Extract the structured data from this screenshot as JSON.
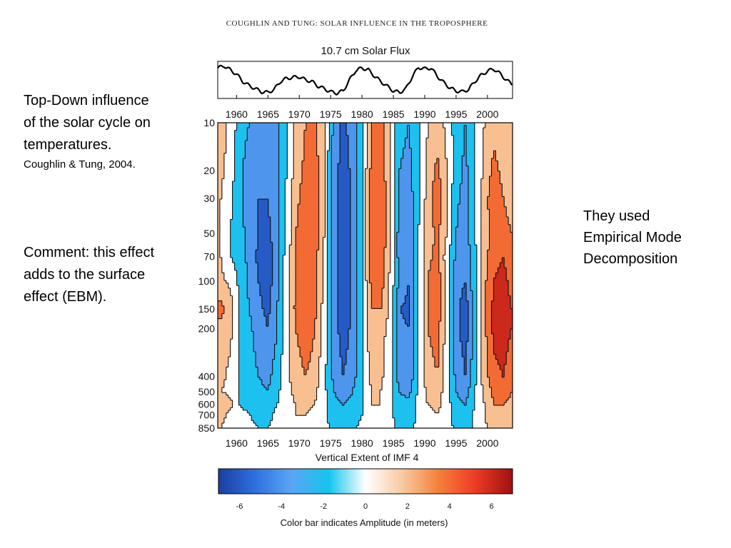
{
  "slide": {
    "left_text": {
      "lines": [
        "Top-Down influence",
        "of the solar cycle on",
        "temperatures."
      ],
      "citation": "Coughlin & Tung, 2004."
    },
    "comment": {
      "lines": [
        "Comment: this effect",
        "adds to the surface",
        "effect (EBM)."
      ]
    },
    "right_text": {
      "lines": [
        "They used",
        "Empirical Mode",
        "Decomposition"
      ]
    }
  },
  "figure": {
    "header": "COUGHLIN AND TUNG: SOLAR INFLUENCE IN THE TROPOSPHERE"
  },
  "chart_data": [
    {
      "type": "line",
      "title": "10.7 cm Solar Flux",
      "xlabel": "",
      "ylabel": "",
      "xlim": [
        1957,
        2004
      ],
      "x_ticks": [
        "1960",
        "1965",
        "1970",
        "1975",
        "1980",
        "1985",
        "1990",
        "1995",
        "2000"
      ],
      "series": [
        {
          "x": [
            1957,
            1958,
            1959,
            1960,
            1961,
            1962,
            1963,
            1964,
            1965,
            1966,
            1967,
            1968,
            1969,
            1970,
            1971,
            1972,
            1973,
            1974,
            1975,
            1976,
            1977,
            1978,
            1979,
            1980,
            1981,
            1982,
            1983,
            1984,
            1985,
            1986,
            1987,
            1988,
            1989,
            1990,
            1991,
            1992,
            1993,
            1994,
            1995,
            1996,
            1997,
            1998,
            1999,
            2000,
            2001,
            2002,
            2003,
            2004
          ],
          "values": [
            0.88,
            0.95,
            0.82,
            0.68,
            0.45,
            0.32,
            0.22,
            0.12,
            0.1,
            0.2,
            0.45,
            0.55,
            0.58,
            0.6,
            0.5,
            0.45,
            0.3,
            0.22,
            0.12,
            0.08,
            0.15,
            0.5,
            0.8,
            0.88,
            0.82,
            0.62,
            0.45,
            0.3,
            0.15,
            0.1,
            0.22,
            0.6,
            0.9,
            0.85,
            0.88,
            0.62,
            0.42,
            0.25,
            0.15,
            0.12,
            0.2,
            0.45,
            0.65,
            0.78,
            0.85,
            0.7,
            0.5,
            0.35
          ]
        }
      ]
    },
    {
      "type": "heatmap",
      "title": "",
      "xlabel": "Vertical Extent of IMF 4",
      "ylabel": "",
      "xlim": [
        1957,
        2004
      ],
      "x_ticks": [
        "1960",
        "1965",
        "1970",
        "1975",
        "1980",
        "1985",
        "1990",
        "1995",
        "2000"
      ],
      "y_ticks": [
        "10",
        "20",
        "30",
        "50",
        "70",
        "100",
        "150",
        "200",
        "400",
        "500",
        "600",
        "700",
        "850"
      ],
      "y_scale": "log",
      "colorbar": {
        "label": "Color bar indicates Amplitude (in meters)",
        "range": [
          -7,
          7
        ],
        "ticks": [
          "-6",
          "-4",
          "-2",
          "0",
          "2",
          "4",
          "6"
        ],
        "colors": [
          "#1b3fa0",
          "#2f6fe0",
          "#5aa6f2",
          "#13c6ee",
          "#ffffff",
          "#f8caa0",
          "#f57f3a",
          "#ee3a25",
          "#9e1010"
        ]
      },
      "x": [
        1957.5,
        1959.0,
        1960.5,
        1962.0,
        1963.5,
        1965.0,
        1966.5,
        1968.0,
        1969.5,
        1971.0,
        1972.5,
        1974.0,
        1975.5,
        1977.0,
        1978.5,
        1980.0,
        1981.5,
        1983.0,
        1984.5,
        1986.0,
        1987.5,
        1989.0,
        1990.5,
        1992.0,
        1993.5,
        1995.0,
        1996.5,
        1998.0,
        1999.5,
        2001.0,
        2002.5,
        2003.8
      ],
      "levels_hPa": [
        10,
        20,
        30,
        50,
        70,
        100,
        150,
        200,
        400,
        500,
        600,
        700,
        850
      ],
      "z": [
        [
          2,
          0.5,
          -2,
          -3,
          -4,
          -4.5,
          -3.5,
          -1.5,
          1.5,
          3,
          3.5,
          1,
          -3.5,
          -5.5,
          -4,
          -1,
          3,
          4,
          1,
          -2.5,
          -3,
          -1.5,
          1,
          2,
          0.5,
          -2,
          -3,
          -1,
          1,
          2.5,
          2,
          1.5
        ],
        [
          1.5,
          0,
          -2.5,
          -4,
          -5,
          -5,
          -3.5,
          -1,
          2,
          3.5,
          4,
          1,
          -4,
          -6,
          -4.5,
          -1,
          3.5,
          4.5,
          1,
          -3,
          -3.5,
          -1.5,
          1.5,
          3.5,
          1,
          -2,
          -3.5,
          -1,
          1.5,
          3.5,
          2.5,
          1.5
        ],
        [
          1,
          -0.5,
          -2.5,
          -4,
          -5,
          -5,
          -3.5,
          -0.5,
          2.5,
          4,
          4,
          1,
          -4,
          -6,
          -4.5,
          -1,
          4,
          5,
          1,
          -3.5,
          -4,
          -1.5,
          2,
          4.5,
          1,
          -2.5,
          -4,
          -1,
          2,
          4.5,
          3,
          2
        ],
        [
          1,
          -1,
          -2.5,
          -3.5,
          -5,
          -5.5,
          -3.5,
          -0.5,
          3,
          4.5,
          4,
          1,
          -4,
          -6,
          -4.5,
          -1,
          4,
          5,
          1,
          -4,
          -4.5,
          -1,
          2,
          3.5,
          1,
          -3,
          -4,
          -1,
          2,
          4,
          4,
          3
        ],
        [
          1,
          -1,
          -2,
          -3.5,
          -5.5,
          -6.5,
          -3.5,
          0,
          3,
          5,
          4,
          0.5,
          -4,
          -6,
          -4.5,
          -1,
          4,
          4.5,
          1,
          -4,
          -4.5,
          -1,
          2.5,
          3.5,
          0,
          -3.5,
          -4.5,
          -1.5,
          2,
          4.5,
          5,
          4
        ],
        [
          1.5,
          0.5,
          -1.5,
          -3.5,
          -5,
          -6,
          -3.5,
          0,
          3.5,
          5,
          4,
          0.5,
          -4,
          -6,
          -4.5,
          -1,
          3.5,
          4,
          0.5,
          -3.5,
          -5,
          -1,
          3,
          4.5,
          0,
          -4,
          -5,
          -1.5,
          2.5,
          5,
          5.5,
          4.5
        ],
        [
          3.5,
          2,
          -1,
          -3,
          -4.5,
          -5.5,
          -3,
          0.5,
          3.5,
          5,
          3.5,
          0,
          -4,
          -6,
          -4.5,
          -1,
          3,
          3,
          0.5,
          -5,
          -5.5,
          -1,
          3,
          4.5,
          0,
          -4.5,
          -6,
          -2,
          2.5,
          5.5,
          6,
          5
        ],
        [
          2.5,
          1.5,
          -1,
          -2.5,
          -4,
          -5,
          -3,
          0.5,
          3,
          4.5,
          3,
          0,
          -4,
          -6,
          -4.5,
          -1,
          2.5,
          2,
          0,
          -4.5,
          -5,
          -1,
          3,
          4,
          0,
          -4.5,
          -6,
          -2,
          2.5,
          5.5,
          6,
          5
        ],
        [
          1.5,
          0.5,
          -1,
          -2,
          -3,
          -3.5,
          -2,
          0.5,
          2,
          3,
          2,
          -0.5,
          -3.5,
          -5,
          -4,
          -1,
          1.5,
          1.5,
          -0.5,
          -4,
          -4.5,
          -1,
          2,
          3,
          0,
          -3.5,
          -5,
          -1.5,
          2,
          4.5,
          5,
          4
        ],
        [
          1,
          0.5,
          -1,
          -2,
          -2.5,
          -3,
          -1.5,
          0.5,
          1.5,
          2,
          1.5,
          -0.5,
          -3,
          -4,
          -3,
          -1,
          1,
          1,
          -0.5,
          -3,
          -3.5,
          -0.5,
          1.5,
          2,
          0,
          -3,
          -4,
          -1,
          1.5,
          3.5,
          4,
          3
        ],
        [
          3,
          1.5,
          -1,
          -1.5,
          -2,
          -2,
          -1,
          0.5,
          1,
          1.5,
          1,
          -0.5,
          -2.5,
          -3,
          -2.5,
          -1,
          1,
          1,
          -0.5,
          -2.5,
          -2.5,
          -0.5,
          1,
          1.5,
          0,
          -2.5,
          -3,
          -1,
          1,
          3,
          3,
          2.5
        ],
        [
          1.5,
          0.5,
          -0.5,
          -1,
          -1.5,
          -1.5,
          -0.5,
          0.5,
          1,
          1,
          0.5,
          -0.5,
          -2,
          -2.5,
          -2,
          -1,
          0.5,
          0.5,
          -0.5,
          -2,
          -2,
          -0.5,
          0.5,
          1,
          0,
          -2,
          -2.5,
          -0.5,
          1,
          2.5,
          2.5,
          2
        ],
        [
          1,
          0.5,
          -0.5,
          -0.5,
          -1,
          -1,
          -0.5,
          0.5,
          0.5,
          0.5,
          0.5,
          -0.5,
          -1.5,
          -1.5,
          -1.5,
          -0.5,
          0.5,
          0.5,
          -0.5,
          -1.5,
          -1.5,
          -0.5,
          0.5,
          0.5,
          0,
          -1.5,
          -2,
          -0.5,
          0.5,
          2,
          2,
          1.5
        ]
      ]
    }
  ]
}
